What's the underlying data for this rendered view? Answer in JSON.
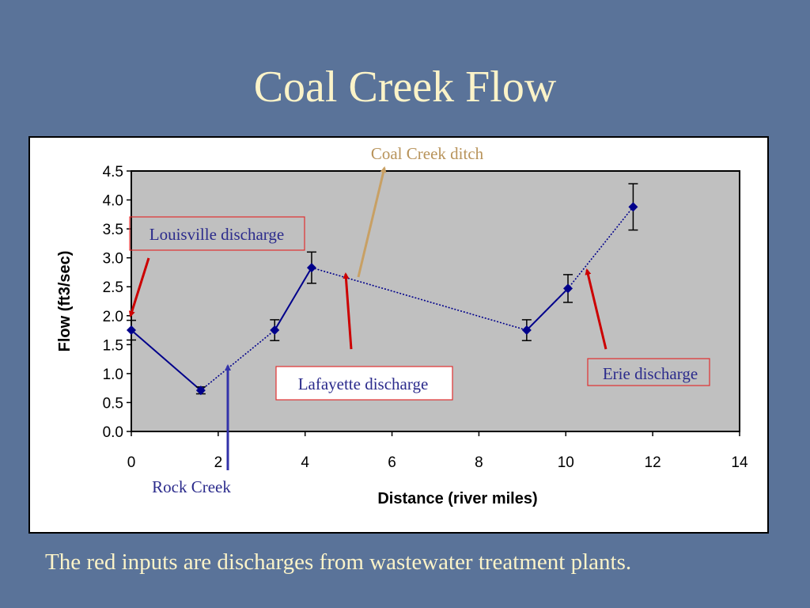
{
  "slide": {
    "title": "Coal Creek Flow",
    "caption": "The red inputs are discharges from wastewater treatment plants."
  },
  "colors": {
    "background": "#5a7399",
    "title": "#fbf3c8",
    "plot_area": "#c0c0c0",
    "series": "#00008b",
    "input_arrow_red": "#cc0000",
    "rock_creek_arrow": "#3333aa",
    "ditch_arrow": "#c8a064",
    "label_box_border": "#e03030"
  },
  "chart_data": {
    "type": "line",
    "xlabel": "Distance (river miles)",
    "ylabel": "Flow (ft3/sec)",
    "xlim": [
      0,
      14
    ],
    "ylim": [
      0,
      4.5
    ],
    "x_ticks": [
      "0",
      "2",
      "4",
      "6",
      "8",
      "10",
      "12",
      "14"
    ],
    "y_ticks": [
      "0.0",
      "0.5",
      "1.0",
      "1.5",
      "2.0",
      "2.5",
      "3.0",
      "3.5",
      "4.0",
      "4.5"
    ],
    "grid": false,
    "points": [
      {
        "x": 0.0,
        "y": 1.75,
        "err": 0.17
      },
      {
        "x": 1.6,
        "y": 0.71,
        "err": 0.06
      },
      {
        "x": 3.3,
        "y": 1.75,
        "err": 0.18
      },
      {
        "x": 4.15,
        "y": 2.83,
        "err": 0.27
      },
      {
        "x": 9.1,
        "y": 1.75,
        "err": 0.18
      },
      {
        "x": 10.05,
        "y": 2.47,
        "err": 0.24
      },
      {
        "x": 11.55,
        "y": 3.88,
        "err": 0.4
      }
    ],
    "solid_segments": [
      [
        0,
        1
      ],
      [
        2,
        3
      ],
      [
        4,
        5
      ]
    ],
    "dotted_path": [
      {
        "x": 1.6,
        "y": 0.71
      },
      {
        "x": 3.3,
        "y": 1.75
      },
      {
        "x": 4.15,
        "y": 2.83
      },
      {
        "x": 9.1,
        "y": 1.75
      },
      {
        "x": 10.05,
        "y": 2.47
      },
      {
        "x": 11.55,
        "y": 3.88
      }
    ],
    "annotations": [
      {
        "text": "Louisville discharge",
        "color": "#2b2b8c",
        "boxed": true
      },
      {
        "text": "Coal Creek ditch",
        "color": "#b8935a",
        "boxed": false
      },
      {
        "text": "Lafayette discharge",
        "color": "#2b2b8c",
        "boxed": true
      },
      {
        "text": "Erie discharge",
        "color": "#2b2b8c",
        "boxed": true
      },
      {
        "text": "Rock Creek",
        "color": "#2b2b8c",
        "boxed": false
      }
    ]
  }
}
